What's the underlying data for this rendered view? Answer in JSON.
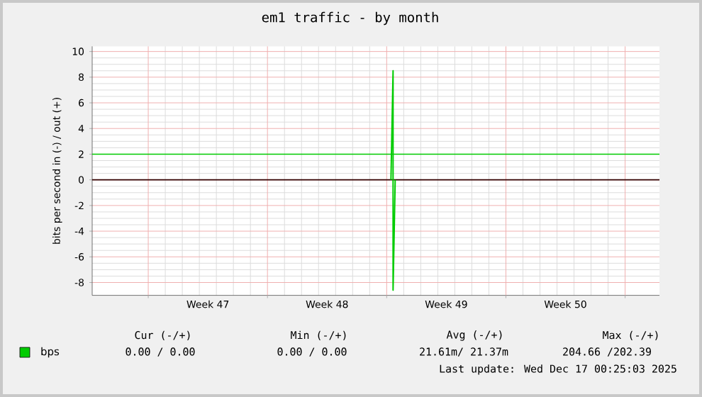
{
  "chart_data": {
    "type": "line",
    "title": "em1 traffic - by month",
    "ylabel": "bits per second in (-) / out (+)",
    "xlim": [
      "2025-11-13T17:00",
      "2025-12-17T00:25"
    ],
    "ylim": [
      -9,
      10.4
    ],
    "xticks": [
      {
        "value": "2025-11-17T00:00",
        "label": null
      },
      {
        "value": "2025-11-20T12:00",
        "label": "Week 47"
      },
      {
        "value": "2025-11-24T00:00",
        "label": null
      },
      {
        "value": "2025-11-27T12:00",
        "label": "Week 48"
      },
      {
        "value": "2025-12-01T00:00",
        "label": null
      },
      {
        "value": "2025-12-04T12:00",
        "label": "Week 49"
      },
      {
        "value": "2025-12-08T00:00",
        "label": null
      },
      {
        "value": "2025-12-11T12:00",
        "label": "Week 50"
      },
      {
        "value": "2025-12-15T00:00",
        "label": null
      }
    ],
    "yticks": [
      -8,
      -6,
      -4,
      -2,
      0,
      2,
      4,
      6,
      8,
      10
    ],
    "grid": true,
    "legend": "bottom",
    "series": [
      {
        "name": "bps",
        "color": "#00cc00",
        "x": [
          "2025-12-01T06:00",
          "2025-12-01T09:00",
          "2025-12-01T09:00",
          "2025-12-01T12:00"
        ],
        "values": [
          0,
          8.5,
          -8.6,
          0
        ]
      }
    ],
    "ref_lines": [
      {
        "axis": "y",
        "value": 0,
        "color": "#330000"
      },
      {
        "axis": "y",
        "value": 2,
        "color": "#00cc00"
      }
    ],
    "annotations": [
      "Cur (-/+)",
      "Min (-/+)",
      "Avg (-/+)",
      "Max (-/+)",
      "0.00 /  0.00",
      "0.00 /  0.00",
      "21.61m/ 21.37m",
      "204.66 /202.39",
      "Last update: Wed Dec 17 00:25:03 2025"
    ]
  }
}
